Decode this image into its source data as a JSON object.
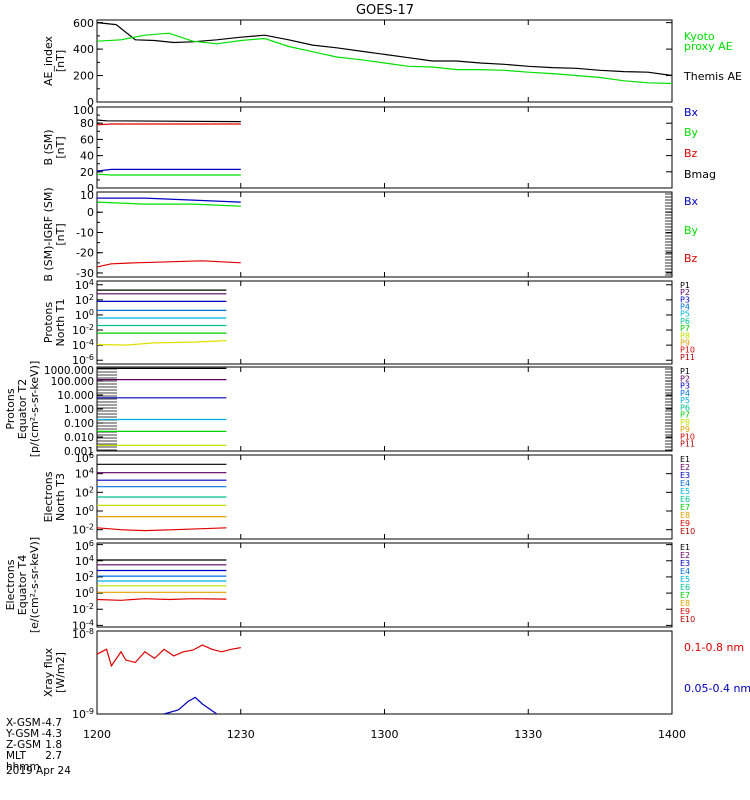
{
  "title": "GOES-17",
  "colors": {
    "axis": "#000000",
    "black": "#000000",
    "green": "#00e000",
    "red": "#e00000",
    "blue": "#0000c0"
  },
  "x_axis": {
    "ticks": [
      "1200",
      "1230",
      "1300",
      "1330",
      "1400"
    ],
    "range": [
      "12:00",
      "14:00"
    ]
  },
  "footer": {
    "rows": [
      {
        "label": "X-GSM",
        "value": "-4.7"
      },
      {
        "label": "Y-GSM",
        "value": "-4.3"
      },
      {
        "label": "Z-GSM",
        "value": "1.8"
      },
      {
        "label": "MLT",
        "value": "2.7"
      },
      {
        "label": "hhmm",
        "value": ""
      }
    ],
    "date": "2019 Apr 24"
  },
  "chart_data": [
    {
      "type": "line",
      "ylabel": [
        "AE_index",
        "[nT]"
      ],
      "ylim": [
        0,
        620
      ],
      "yticks": [
        "0",
        "200",
        "400",
        "600"
      ],
      "legend": [
        {
          "text": "Kyoto",
          "color": "#00e000"
        },
        {
          "text": "proxy AE",
          "color": "#00e000"
        },
        {
          "text": "Themis AE",
          "color": "#000000"
        }
      ],
      "series": [
        {
          "name": "Themis AE",
          "color": "#000000",
          "x": [
            0,
            4,
            8,
            12,
            16,
            20,
            25,
            30,
            35,
            40,
            45,
            50,
            55,
            60,
            65,
            70,
            75,
            80,
            85,
            90,
            95,
            100,
            105,
            110,
            115,
            120
          ],
          "y": [
            600,
            585,
            470,
            465,
            450,
            455,
            470,
            490,
            505,
            470,
            430,
            410,
            385,
            360,
            335,
            310,
            310,
            295,
            285,
            270,
            260,
            255,
            240,
            230,
            225,
            200
          ]
        },
        {
          "name": "Kyoto proxy AE",
          "color": "#00e000",
          "x": [
            0,
            5,
            10,
            15,
            20,
            25,
            30,
            35,
            40,
            45,
            50,
            55,
            60,
            65,
            70,
            75,
            80,
            85,
            90,
            95,
            100,
            105,
            110,
            115,
            120
          ],
          "y": [
            460,
            470,
            505,
            520,
            460,
            440,
            465,
            480,
            420,
            380,
            340,
            320,
            295,
            270,
            265,
            245,
            245,
            240,
            225,
            215,
            200,
            185,
            160,
            145,
            140
          ]
        }
      ]
    },
    {
      "type": "line",
      "ylabel": [
        "B (SM)",
        "[nT]"
      ],
      "ylim": [
        0,
        100
      ],
      "yticks": [
        "0",
        "20",
        "40",
        "60",
        "80",
        "100"
      ],
      "legend": [
        {
          "text": "Bx",
          "color": "#0000c0"
        },
        {
          "text": "By",
          "color": "#00e000"
        },
        {
          "text": "Bz",
          "color": "#e00000"
        },
        {
          "text": "Bmag",
          "color": "#000000"
        }
      ],
      "series": [
        {
          "name": "Bmag",
          "color": "#000000",
          "x": [
            0,
            2,
            30
          ],
          "y": [
            84,
            83,
            82
          ]
        },
        {
          "name": "Bz",
          "color": "#e00000",
          "x": [
            0,
            3,
            30
          ],
          "y": [
            78,
            79,
            79
          ]
        },
        {
          "name": "Bx",
          "color": "#0000c0",
          "x": [
            0,
            3,
            30
          ],
          "y": [
            21,
            23,
            23
          ]
        },
        {
          "name": "By",
          "color": "#00e000",
          "x": [
            0,
            3,
            30
          ],
          "y": [
            17,
            16,
            16
          ]
        }
      ]
    },
    {
      "type": "line",
      "ylabel": [
        "B (SM)-IGRF (SM)",
        "[nT]"
      ],
      "ylim": [
        -32,
        10
      ],
      "yticks": [
        "-30",
        "-20",
        "-10",
        "0",
        "10"
      ],
      "legend": [
        {
          "text": "Bx",
          "color": "#0000c0"
        },
        {
          "text": "By",
          "color": "#00e000"
        },
        {
          "text": "Bz",
          "color": "#e00000"
        }
      ],
      "series": [
        {
          "name": "Bx",
          "color": "#0000c0",
          "x": [
            0,
            10,
            20,
            30
          ],
          "y": [
            7,
            7,
            6,
            5
          ]
        },
        {
          "name": "By",
          "color": "#00e000",
          "x": [
            0,
            10,
            20,
            30
          ],
          "y": [
            5,
            4,
            4,
            3
          ]
        },
        {
          "name": "Bz",
          "color": "#e00000",
          "x": [
            0,
            3,
            8,
            15,
            22,
            30
          ],
          "y": [
            -27,
            -25.5,
            -25,
            -24.5,
            -24,
            -25
          ]
        }
      ]
    },
    {
      "type": "line",
      "log": true,
      "ylabel": [
        "Protons",
        "North T1"
      ],
      "ylim": [
        -6.5,
        4.5
      ],
      "yticks": [
        "10^4",
        "10^2",
        "10^0",
        "10^-2",
        "10^-4",
        "10^-6"
      ],
      "legend": [
        {
          "text": "P1",
          "color": "#000000"
        },
        {
          "text": "P2",
          "color": "#600060"
        },
        {
          "text": "P3",
          "color": "#0000c0"
        },
        {
          "text": "P4",
          "color": "#0070e0"
        },
        {
          "text": "P5",
          "color": "#00b0e0"
        },
        {
          "text": "P6",
          "color": "#00c090"
        },
        {
          "text": "P7",
          "color": "#00d000"
        },
        {
          "text": "P8",
          "color": "#c0e000"
        },
        {
          "text": "P9",
          "color": "#e0a000"
        },
        {
          "text": "P10",
          "color": "#e00000"
        },
        {
          "text": "P11",
          "color": "#b00000"
        }
      ],
      "series": [
        {
          "name": "P1",
          "color": "#000000",
          "x": [
            0,
            27
          ],
          "y": [
            3.3,
            3.3
          ]
        },
        {
          "name": "P2",
          "color": "#600060",
          "x": [
            0,
            27
          ],
          "y": [
            2.8,
            2.8
          ]
        },
        {
          "name": "P3",
          "color": "#0000c0",
          "x": [
            0,
            27
          ],
          "y": [
            1.8,
            1.8
          ]
        },
        {
          "name": "P4",
          "color": "#0070e0",
          "x": [
            0,
            27
          ],
          "y": [
            0.6,
            0.6
          ]
        },
        {
          "name": "P5",
          "color": "#00b0e0",
          "x": [
            0,
            27
          ],
          "y": [
            -0.4,
            -0.4
          ]
        },
        {
          "name": "P6",
          "color": "#00c090",
          "x": [
            0,
            27
          ],
          "y": [
            -1.4,
            -1.4
          ]
        },
        {
          "name": "P7",
          "color": "#00d000",
          "x": [
            0,
            27
          ],
          "y": [
            -2.4,
            -2.4
          ]
        },
        {
          "name": "P8",
          "color": "#e0e000",
          "x": [
            0,
            6,
            12,
            20,
            27
          ],
          "y": [
            -3.9,
            -4.0,
            -3.7,
            -3.6,
            -3.4
          ]
        }
      ]
    },
    {
      "type": "line",
      "log": true,
      "ylabel": [
        "Protons",
        "Equator T2",
        "[p/(cm²-s-sr-keV)]"
      ],
      "ylim": [
        -3,
        3
      ],
      "yticks": [
        "1000.000",
        "100.000",
        "10.000",
        "1.000",
        "0.100",
        "0.010",
        "0.001"
      ],
      "legend": [
        {
          "text": "P1",
          "color": "#000000"
        },
        {
          "text": "P2",
          "color": "#600060"
        },
        {
          "text": "P3",
          "color": "#0000c0"
        },
        {
          "text": "P4",
          "color": "#0070e0"
        },
        {
          "text": "P5",
          "color": "#00b0e0"
        },
        {
          "text": "P6",
          "color": "#00c090"
        },
        {
          "text": "P7",
          "color": "#00d000"
        },
        {
          "text": "P8",
          "color": "#c0e000"
        },
        {
          "text": "P9",
          "color": "#e0a000"
        },
        {
          "text": "P10",
          "color": "#e00000"
        },
        {
          "text": "P11",
          "color": "#b00000"
        }
      ],
      "series": [
        {
          "name": "P1",
          "color": "#000000",
          "x": [
            0,
            27
          ],
          "y": [
            2.9,
            2.9
          ]
        },
        {
          "name": "P2",
          "color": "#600060",
          "x": [
            0,
            27
          ],
          "y": [
            2.1,
            2.1
          ]
        },
        {
          "name": "P3",
          "color": "#0000c0",
          "x": [
            0,
            27
          ],
          "y": [
            0.8,
            0.8
          ]
        },
        {
          "name": "P5",
          "color": "#00b0e0",
          "x": [
            0,
            27
          ],
          "y": [
            -0.75,
            -0.75
          ]
        },
        {
          "name": "P7",
          "color": "#00d000",
          "x": [
            0,
            27
          ],
          "y": [
            -1.6,
            -1.6
          ]
        },
        {
          "name": "P8",
          "color": "#c0e000",
          "x": [
            0,
            27
          ],
          "y": [
            -2.6,
            -2.6
          ]
        }
      ]
    },
    {
      "type": "line",
      "log": true,
      "ylabel": [
        "Electrons",
        "North T3"
      ],
      "ylim": [
        -3,
        6
      ],
      "yticks": [
        "10^6",
        "10^4",
        "10^2",
        "10^0",
        "10^-2"
      ],
      "legend": [
        {
          "text": "E1",
          "color": "#000000"
        },
        {
          "text": "E2",
          "color": "#600060"
        },
        {
          "text": "E3",
          "color": "#0000c0"
        },
        {
          "text": "E4",
          "color": "#0070e0"
        },
        {
          "text": "E5",
          "color": "#00b0e0"
        },
        {
          "text": "E6",
          "color": "#00c090"
        },
        {
          "text": "E7",
          "color": "#00d000"
        },
        {
          "text": "E8",
          "color": "#e0a000"
        },
        {
          "text": "E9",
          "color": "#e00000"
        },
        {
          "text": "E10",
          "color": "#b00000"
        }
      ],
      "series": [
        {
          "name": "E1",
          "color": "#000000",
          "x": [
            0,
            27
          ],
          "y": [
            5.0,
            5.0
          ]
        },
        {
          "name": "E2",
          "color": "#600060",
          "x": [
            0,
            27
          ],
          "y": [
            4.1,
            4.1
          ]
        },
        {
          "name": "E3",
          "color": "#0000c0",
          "x": [
            0,
            27
          ],
          "y": [
            3.3,
            3.3
          ]
        },
        {
          "name": "E4",
          "color": "#0070e0",
          "x": [
            0,
            27
          ],
          "y": [
            2.6,
            2.6
          ]
        },
        {
          "name": "E6",
          "color": "#00c090",
          "x": [
            0,
            27
          ],
          "y": [
            1.5,
            1.5
          ]
        },
        {
          "name": "E7",
          "color": "#c0e000",
          "x": [
            0,
            27
          ],
          "y": [
            0.6,
            0.6
          ]
        },
        {
          "name": "E8",
          "color": "#e0a000",
          "x": [
            0,
            27
          ],
          "y": [
            -0.6,
            -0.6
          ]
        },
        {
          "name": "E9",
          "color": "#e00000",
          "x": [
            0,
            5,
            10,
            16,
            22,
            27
          ],
          "y": [
            -1.8,
            -2.0,
            -2.1,
            -2.0,
            -1.9,
            -1.8
          ]
        }
      ]
    },
    {
      "type": "line",
      "log": true,
      "ylabel": [
        "Electrons",
        "Equator T4",
        "[e/(cm²-s-sr-keV)]"
      ],
      "ylim": [
        -4.2,
        6.2
      ],
      "yticks": [
        "10^6",
        "10^4",
        "10^2",
        "10^0",
        "10^-2",
        "10^-4"
      ],
      "legend": [
        {
          "text": "E1",
          "color": "#000000"
        },
        {
          "text": "E2",
          "color": "#600060"
        },
        {
          "text": "E3",
          "color": "#0000c0"
        },
        {
          "text": "E4",
          "color": "#0070e0"
        },
        {
          "text": "E5",
          "color": "#00b0e0"
        },
        {
          "text": "E6",
          "color": "#00c090"
        },
        {
          "text": "E7",
          "color": "#00d000"
        },
        {
          "text": "E8",
          "color": "#e0a000"
        },
        {
          "text": "E9",
          "color": "#e00000"
        },
        {
          "text": "E10",
          "color": "#b00000"
        }
      ],
      "series": [
        {
          "name": "E1",
          "color": "#000000",
          "x": [
            0,
            27
          ],
          "y": [
            4.1,
            4.1
          ]
        },
        {
          "name": "E2",
          "color": "#600060",
          "x": [
            0,
            27
          ],
          "y": [
            3.5,
            3.5
          ]
        },
        {
          "name": "E3",
          "color": "#0000c0",
          "x": [
            0,
            27
          ],
          "y": [
            2.8,
            2.8
          ]
        },
        {
          "name": "E4",
          "color": "#0070e0",
          "x": [
            0,
            27
          ],
          "y": [
            2.1,
            2.1
          ]
        },
        {
          "name": "E5",
          "color": "#00b0e0",
          "x": [
            0,
            27
          ],
          "y": [
            1.5,
            1.5
          ]
        },
        {
          "name": "E7",
          "color": "#c0e000",
          "x": [
            0,
            27
          ],
          "y": [
            0.9,
            0.9
          ]
        },
        {
          "name": "E8",
          "color": "#e0a000",
          "x": [
            0,
            27
          ],
          "y": [
            0.1,
            0.1
          ]
        },
        {
          "name": "E9",
          "color": "#e00000",
          "x": [
            0,
            5,
            10,
            15,
            20,
            27
          ],
          "y": [
            -0.8,
            -0.9,
            -0.7,
            -0.8,
            -0.7,
            -0.75
          ]
        }
      ]
    },
    {
      "type": "line",
      "log": true,
      "ylabel": [
        "Xray flux",
        "[W/m2]"
      ],
      "ylim": [
        -9,
        -8
      ],
      "yticks": [
        "10^-8",
        "10^-9"
      ],
      "legend": [
        {
          "text": "0.1-0.8 nm",
          "color": "#e00000"
        },
        {
          "text": "0.05-0.4 nm",
          "color": "#0000c0"
        }
      ],
      "series": [
        {
          "name": "0.1-0.8 nm",
          "color": "#e00000",
          "x": [
            0,
            2,
            3,
            5,
            6,
            8,
            10,
            12,
            14,
            16,
            18,
            20,
            22,
            24,
            26,
            28,
            30
          ],
          "y": [
            -8.28,
            -8.22,
            -8.42,
            -8.25,
            -8.35,
            -8.38,
            -8.25,
            -8.33,
            -8.22,
            -8.3,
            -8.25,
            -8.23,
            -8.17,
            -8.22,
            -8.25,
            -8.22,
            -8.2
          ]
        },
        {
          "name": "0.05-0.4 nm",
          "color": "#0000c0",
          "x": [
            14,
            17,
            19,
            20.5,
            22,
            25
          ],
          "y": [
            -9.0,
            -8.95,
            -8.85,
            -8.8,
            -8.88,
            -9.0
          ]
        }
      ]
    }
  ]
}
